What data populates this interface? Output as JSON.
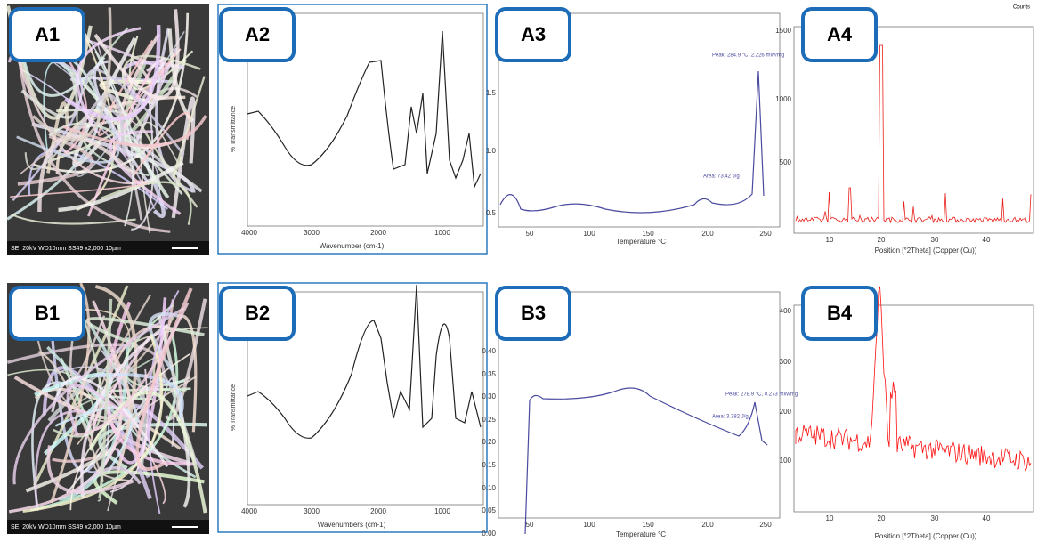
{
  "panels": [
    {
      "label": "A1",
      "footer": "SEI  20kV  WD10mm  SS49      x2,000   10µm"
    },
    {
      "label": "A2",
      "x_label": "Wavenumber (cm-1)",
      "y_label": "% Transmittance",
      "x_ticks": [
        "4000",
        "3000",
        "2000",
        "1000"
      ]
    },
    {
      "label": "A3",
      "x_label": "Temperature °C",
      "x_ticks": [
        "50",
        "100",
        "150",
        "200",
        "250"
      ],
      "y_ticks": [
        "1.5",
        "1.0",
        "0.5"
      ],
      "annotations": [
        "Peak: 284.9 °C, 2.226 mW/mg",
        "Area: 73.42 J/g"
      ]
    },
    {
      "label": "A4",
      "corner": "Counts",
      "x_label": "Position [°2Theta] (Copper (Cu))",
      "x_ticks": [
        "10",
        "20",
        "30",
        "40"
      ],
      "y_ticks": [
        "1500",
        "1000",
        "500"
      ]
    },
    {
      "label": "B1",
      "footer": "SEI  20kV  WD10mm  SS49      x2,000   10µm"
    },
    {
      "label": "B2",
      "x_label": "Wavenumbers (cm-1)",
      "y_label": "% Transmittance",
      "x_ticks": [
        "4000",
        "3000",
        "2000",
        "1000"
      ]
    },
    {
      "label": "B3",
      "x_label": "Temperature °C",
      "x_ticks": [
        "50",
        "100",
        "150",
        "200",
        "250"
      ],
      "y_ticks": [
        "0.40",
        "0.35",
        "0.30",
        "0.25",
        "0.20",
        "0.15",
        "0.10",
        "0.05",
        "0.00"
      ],
      "annotations": [
        "Peak: 278.9 °C, 0.273 mW/mg",
        "Area: 3.382 J/g"
      ]
    },
    {
      "label": "B4",
      "x_label": "Position [°2Theta] (Copper (Cu))",
      "x_ticks": [
        "10",
        "20",
        "30",
        "40"
      ],
      "y_ticks": [
        "400",
        "300",
        "200",
        "100"
      ]
    }
  ]
}
